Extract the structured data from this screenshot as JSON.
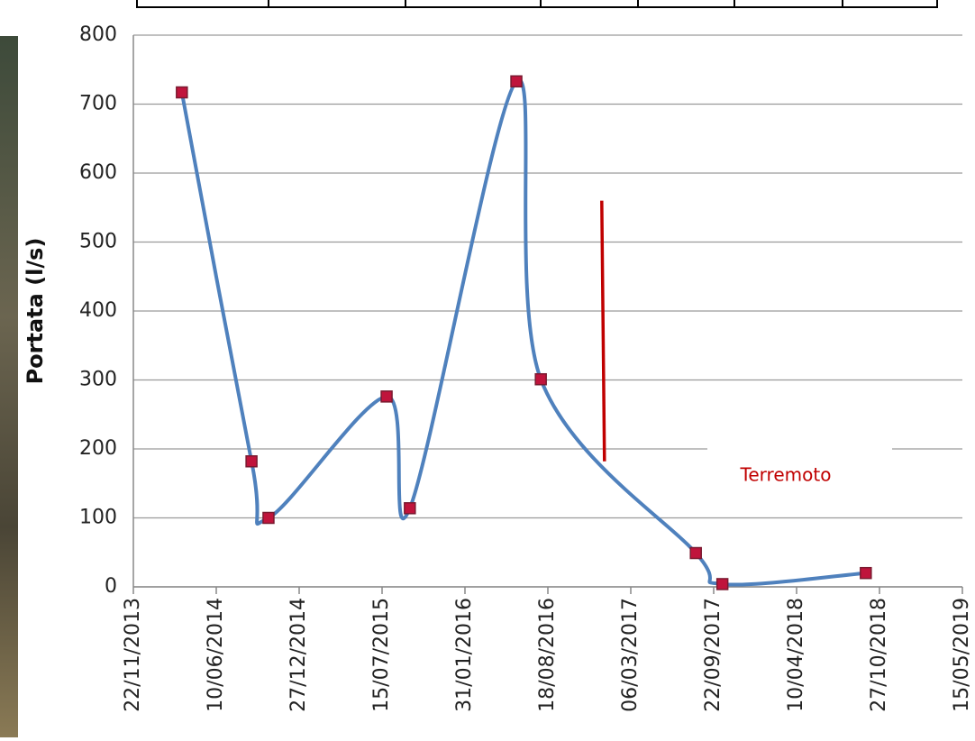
{
  "chart_data": {
    "type": "line",
    "y_label": "Portata (l/s)",
    "x": [
      "19/03/2014",
      "03/09/2014",
      "14/10/2014",
      "26/07/2015",
      "20/09/2015",
      "03/06/2016",
      "01/08/2016",
      "10/08/2017",
      "13/10/2017",
      "24/09/2018"
    ],
    "series": [
      {
        "color": "#4f81bd",
        "marker_color": "#c0143c",
        "values": [
          717,
          182,
          100,
          276,
          114,
          733,
          301,
          49,
          4,
          20
        ]
      }
    ],
    "xlim": [
      "22/11/2013",
      "15/05/2019"
    ],
    "xticks": [
      "22/11/2013",
      "10/06/2014",
      "27/12/2014",
      "15/07/2015",
      "31/01/2016",
      "18/08/2016",
      "06/03/2017",
      "22/09/2017",
      "10/04/2018",
      "27/10/2018",
      "15/05/2019"
    ],
    "ylim": [
      0,
      800
    ],
    "yticks": [
      0,
      100,
      200,
      300,
      400,
      500,
      600,
      700,
      800
    ],
    "grid": true,
    "annotation": {
      "text": "Terremoto",
      "x": "26/12/2016",
      "y": [
        182,
        560
      ],
      "color": "#c00000"
    }
  }
}
